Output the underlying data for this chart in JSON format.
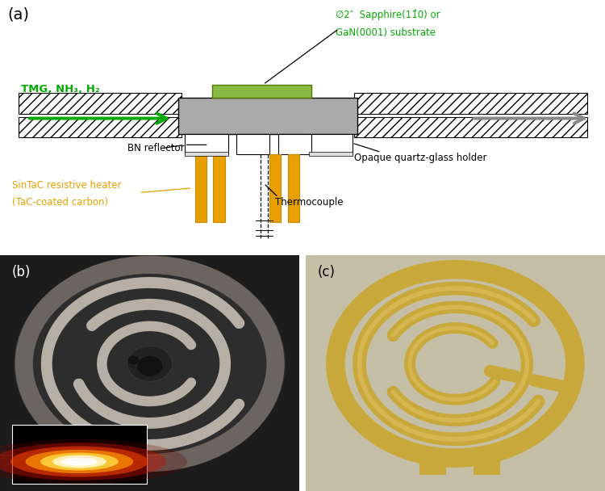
{
  "fig_width": 7.5,
  "fig_height": 6.08,
  "bg_color": "#ffffff",
  "panel_a_label": "(a)",
  "panel_b_label": "(b)",
  "panel_c_label": "(c)",
  "green_color": "#00aa00",
  "orange_color": "#E8A000",
  "gray_arrow_color": "#999999",
  "substrate_label_line1": "∅2″  Sapphire(11̂0) or",
  "substrate_label_line2": "GaN(0001) substrate",
  "bn_label": "BN reflector",
  "heater_label_line1": "SinTaC resistive heater",
  "heater_label_line2": "(TaC-coated carbon)",
  "thermocouple_label": "Thermocouple",
  "quartz_label": "Opaque quartz-glass holder",
  "green_arrow_text": "TMG, NH₃, H₂",
  "tube_hatch_color": "#dddddd",
  "substrate_green": "#88bb44",
  "susceptor_gray": "#999999",
  "heater_gold": "#E8A000",
  "bn_cream": "#e8e8d8",
  "panel_b_bg": "#1c1c1c",
  "panel_c_bg": "#c5bfa8"
}
